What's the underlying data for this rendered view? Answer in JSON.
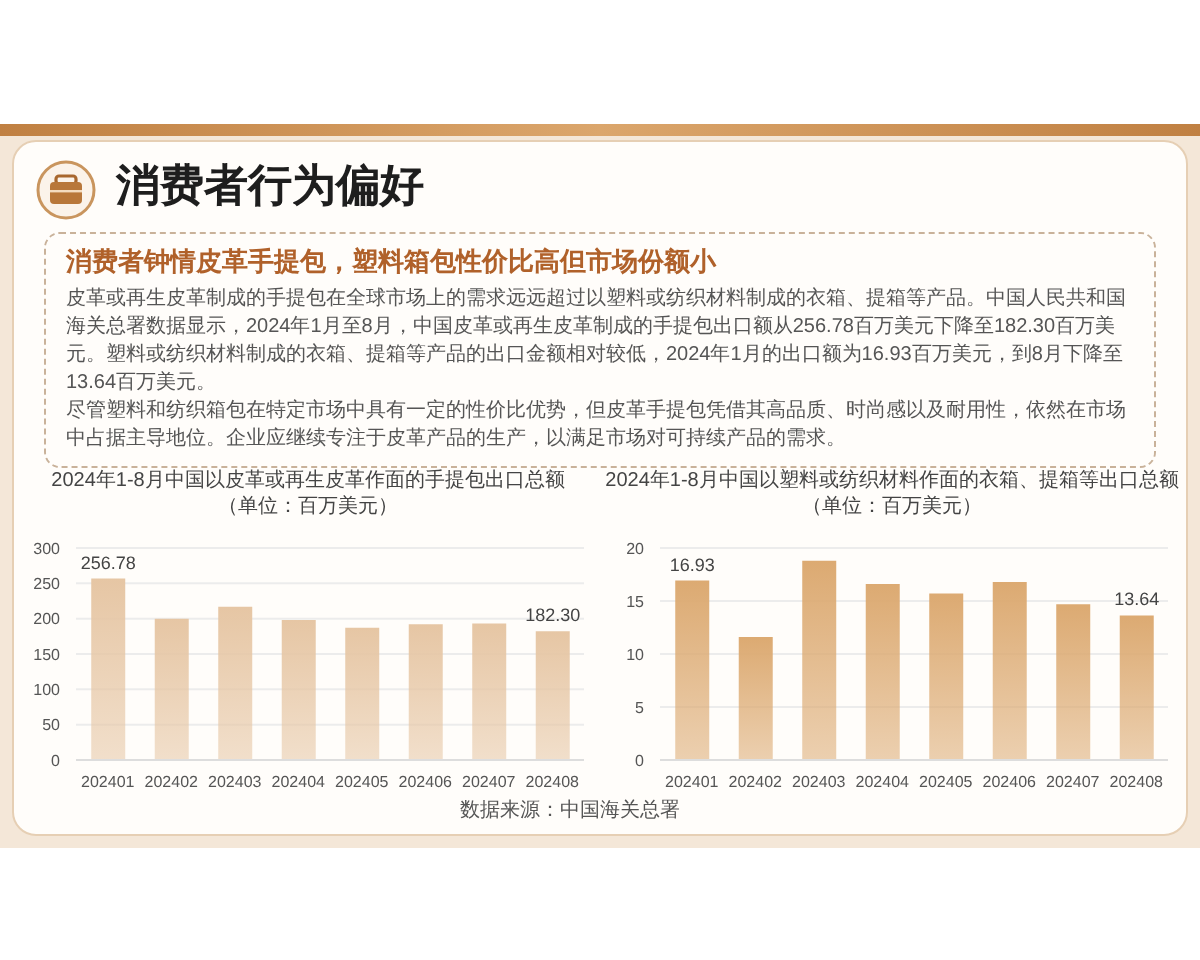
{
  "chart_data": [
    {
      "type": "other",
      "title": "消费者行为偏好",
      "subtitle": "消费者钟情皮革手提包，塑料箱包性价比高但市场份额小",
      "annotations": [
        "皮革或再生皮革制成的手提包在全球市场上的需求远远超过以塑料或纺织材料制成的衣箱、提箱等产品。中国人民共和国海关总署数据显示，2024年1月至8月，中国皮革或再生皮革制成的手提包出口额从256.78百万美元下降至182.30百万美元。塑料或纺织材料制成的衣箱、提箱等产品的出口金额相对较低，2024年1月的出口额为16.93百万美元，到8月下降至13.64百万美元。",
        "尽管塑料和纺织箱包在特定市场中具有一定的性价比优势，但皮革手提包凭借其高品质、时尚感以及耐用性，依然在市场中占据主导地位。企业应继续专注于皮革产品的生产，以满足市场对可持续产品的需求。"
      ]
    },
    {
      "type": "bar",
      "title": "2024年1-8月中国以皮革或再生皮革作面的手提包出口总额",
      "subtitle": "（单位：百万美元）",
      "categories": [
        "202401",
        "202402",
        "202403",
        "202404",
        "202405",
        "202406",
        "202407",
        "202408"
      ],
      "values": [
        256.78,
        200,
        217,
        198,
        187,
        192,
        193,
        182.3
      ],
      "value_labels": [
        "256.78",
        null,
        null,
        null,
        null,
        null,
        null,
        "182.30"
      ],
      "color": "#e6c6a4",
      "ylim": [
        0,
        300
      ],
      "yticks": [
        0,
        50,
        100,
        150,
        200,
        250,
        300
      ],
      "grid": "y",
      "annotations": [
        "数据来源：中国海关总署"
      ]
    },
    {
      "type": "bar",
      "title": "2024年1-8月中国以塑料或纺织材料作面的衣箱、提箱等出口总额",
      "subtitle": "（单位：百万美元）",
      "categories": [
        "202401",
        "202402",
        "202403",
        "202404",
        "202405",
        "202406",
        "202407",
        "202408"
      ],
      "values": [
        16.93,
        11.6,
        18.8,
        16.6,
        15.7,
        16.8,
        14.7,
        13.64
      ],
      "value_labels": [
        "16.93",
        null,
        null,
        null,
        null,
        null,
        null,
        "13.64"
      ],
      "color": "#dcaa72",
      "ylim": [
        0,
        20
      ],
      "yticks": [
        0,
        5,
        10,
        15,
        20
      ],
      "grid": "y"
    }
  ]
}
